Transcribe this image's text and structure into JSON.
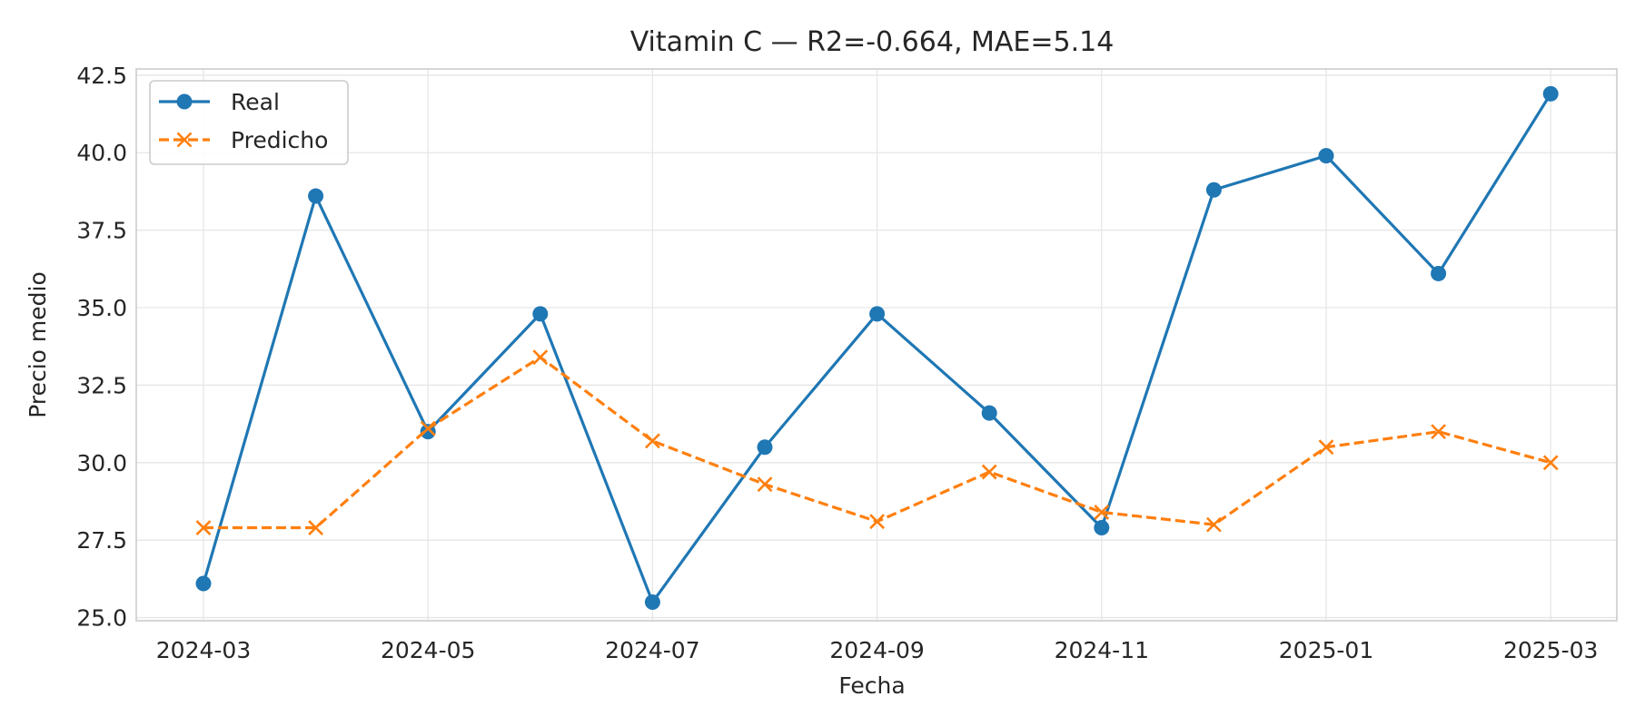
{
  "chart_data": {
    "type": "line",
    "title": "Vitamin C — R2=-0.664, MAE=5.14",
    "xlabel": "Fecha",
    "ylabel": "Precio medio",
    "x": [
      "2024-03",
      "2024-04",
      "2024-05",
      "2024-06",
      "2024-07",
      "2024-08",
      "2024-09",
      "2024-10",
      "2024-11",
      "2024-12",
      "2025-01",
      "2025-02",
      "2025-03"
    ],
    "x_ticks": [
      "2024-03",
      "2024-05",
      "2024-07",
      "2024-09",
      "2024-11",
      "2025-01",
      "2025-03"
    ],
    "y_ticks": [
      "25.0",
      "27.5",
      "30.0",
      "32.5",
      "35.0",
      "37.5",
      "40.0",
      "42.5"
    ],
    "ylim": [
      24.9,
      42.7
    ],
    "grid": true,
    "legend_position": "top-left",
    "series": [
      {
        "name": "Real",
        "color": "#1f77b4",
        "marker": "circle",
        "line_style": "solid",
        "values": [
          26.1,
          38.6,
          31.0,
          34.8,
          25.5,
          30.5,
          34.8,
          31.6,
          27.9,
          38.8,
          39.9,
          36.1,
          41.9
        ]
      },
      {
        "name": "Predicho",
        "color": "#ff7f0e",
        "marker": "x",
        "line_style": "dashed",
        "values": [
          27.9,
          27.9,
          31.1,
          33.4,
          30.7,
          29.3,
          28.1,
          29.7,
          28.4,
          28.0,
          30.5,
          31.0,
          30.0
        ]
      }
    ]
  }
}
